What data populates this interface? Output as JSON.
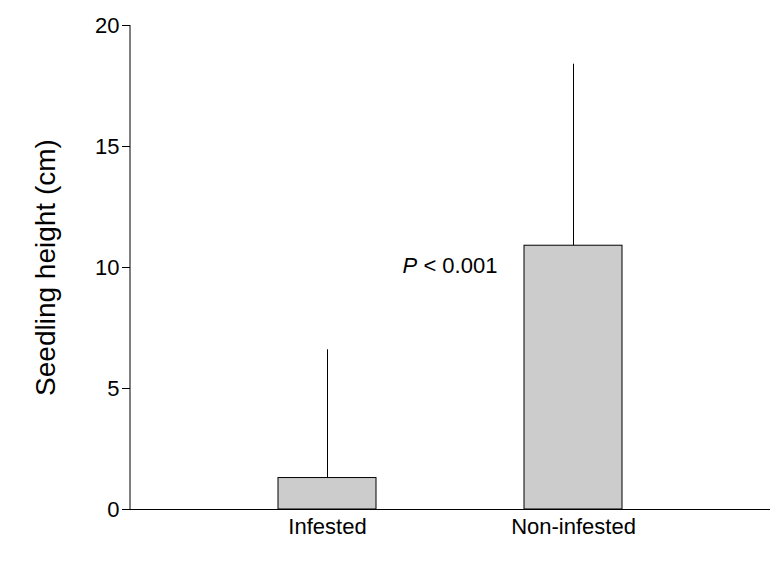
{
  "chart_data": {
    "type": "bar",
    "ylabel": "Seedling height (cm)",
    "categories": [
      "Infested",
      "Non-infested"
    ],
    "values": [
      1.3,
      10.9
    ],
    "errors": [
      5.3,
      7.5
    ],
    "color": "#cccccc",
    "ylim": [
      0,
      20
    ],
    "yticks": [
      0,
      5,
      10,
      15,
      20
    ],
    "annotation": "P < 0.001",
    "grid": false
  }
}
